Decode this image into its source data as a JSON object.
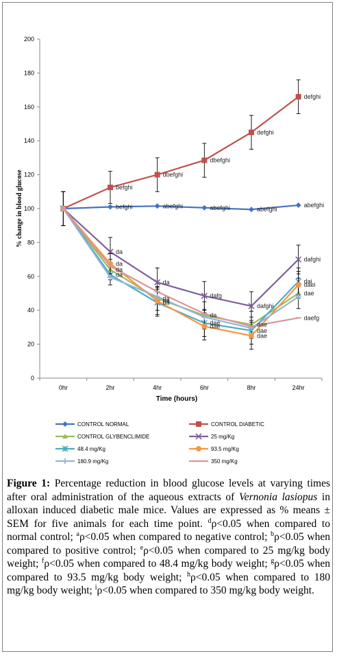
{
  "chart_data": {
    "type": "line",
    "ylabel": "% change in blood glucose",
    "xlabel": "Time (hours)",
    "categories": [
      "0hr",
      "2hr",
      "4hr",
      "6hr",
      "8hr",
      "24hr"
    ],
    "ylim": [
      0,
      200
    ],
    "yticks": [
      0,
      20,
      40,
      60,
      80,
      100,
      120,
      140,
      160,
      180,
      200
    ],
    "grid": false,
    "legend_position": "bottom",
    "series": [
      {
        "name": "CONTROL NORMAL",
        "color": "#4472c4",
        "marker": "diamond",
        "values": [
          100,
          101,
          101.5,
          100.5,
          99.5,
          102
        ],
        "errors": [
          10,
          0,
          0,
          0,
          0,
          0
        ],
        "labels": [
          "",
          "befghi",
          "abefghi",
          "abefghi",
          "abefghi",
          "abefghi"
        ]
      },
      {
        "name": "CONTROL DIABETIC",
        "color": "#c0504d",
        "marker": "square",
        "values": [
          100,
          112.5,
          120,
          128.5,
          145,
          166
        ],
        "errors": [
          10,
          9.5,
          10,
          10,
          10,
          10
        ],
        "labels": [
          "",
          "befghi",
          "dbefghi",
          "dbefghi",
          "defghi",
          "defghi"
        ]
      },
      {
        "name": "CONTROL GLYBENCLIMIDE",
        "color": "#9bbb59",
        "marker": "triangle",
        "values": [
          100,
          64,
          47,
          37,
          31.5,
          50
        ],
        "errors": [
          0,
          6,
          7,
          8,
          8,
          9
        ],
        "labels": [
          "",
          "da",
          "da",
          "da",
          "dae",
          "dae"
        ]
      },
      {
        "name": "25 mg/Kg",
        "color": "#7f5f9f",
        "marker": "x",
        "values": [
          100,
          74.5,
          56.5,
          48.5,
          42.5,
          70
        ],
        "errors": [
          10,
          8.5,
          8.5,
          8.5,
          8.5,
          8.5
        ],
        "labels": [
          "",
          "da",
          "da",
          "dafg",
          "dafghi",
          "dafghi"
        ]
      },
      {
        "name": "48.4 mg/Kg",
        "color": "#4bacc6",
        "marker": "star",
        "values": [
          100,
          61,
          44.5,
          32.5,
          28,
          57
        ],
        "errors": [
          0,
          6,
          8,
          8,
          8,
          8
        ],
        "labels": [
          "",
          "da",
          "da",
          "dae",
          "dae",
          "dai"
        ]
      },
      {
        "name": "93.5 mg/Kg",
        "color": "#f79646",
        "marker": "circle",
        "values": [
          100,
          67.5,
          45.5,
          30.5,
          25,
          55
        ],
        "errors": [
          0,
          6,
          8,
          8,
          8,
          8
        ],
        "labels": [
          "",
          "da",
          "da",
          "dae",
          "dae",
          "daei"
        ]
      },
      {
        "name": "180.9 mg/Kg",
        "color": "#95b3d7",
        "marker": "plus",
        "values": [
          100,
          59.5,
          48,
          36,
          29.5,
          48
        ],
        "errors": [
          0,
          0,
          0,
          0,
          0,
          0
        ],
        "labels": [
          "",
          "",
          "",
          "",
          "",
          ""
        ]
      },
      {
        "name": "350 mg/Kg",
        "color": "#d99694",
        "marker": "dash",
        "values": [
          100,
          66,
          51,
          38,
          30.5,
          35.5
        ],
        "errors": [
          0,
          0,
          0,
          0,
          0,
          0
        ],
        "labels": [
          "",
          "",
          "",
          "",
          "",
          "daefg"
        ]
      }
    ]
  },
  "caption": {
    "label": "Figure 1:",
    "text_1": " Percentage reduction in blood glucose levels at varying times after oral administration of the aqueous extracts of ",
    "species": "Vernonia lasiopus",
    "text_2": " in alloxan induced diabetic male mice. Values are expressed as % means ± SEM for five animals for each time point. ",
    "sup_d": "d",
    "text_d": "ρ<0.05 when compared to normal control; ",
    "sup_a": "a",
    "text_a": "ρ<0.05 when compared to negative control; ",
    "sup_b": "b",
    "text_b": "ρ<0.05 when compared to positive control; ",
    "sup_e": "e",
    "text_e": "ρ<0.05 when compared to 25 mg/kg body weight; ",
    "sup_f": "f",
    "text_f": "ρ<0.05 when compared to 48.4 mg/kg body weight; ",
    "sup_g": "g",
    "text_g": "ρ<0.05 when compared to 93.5 mg/kg body weight; ",
    "sup_h": "h",
    "text_h": "ρ<0.05 when compared to 180 mg/kg body weight; ",
    "sup_i": "i",
    "text_i": "ρ<0.05 when compared to 350 mg/kg body weight."
  }
}
